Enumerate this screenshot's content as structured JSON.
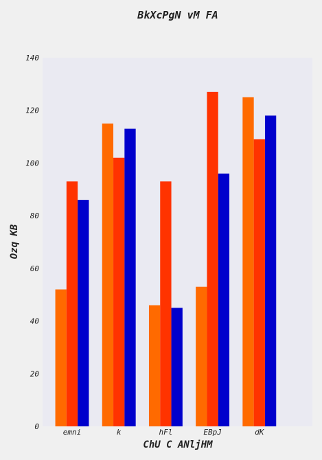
{
  "chart_data": {
    "type": "bar",
    "title": "BkXcPgN vM FA",
    "xlabel": "ChU C ANljHM",
    "ylabel": "Ozq KB",
    "categories": [
      "emni",
      "k",
      "hFl",
      "EBpJ",
      "dK"
    ],
    "series": [
      {
        "values": [
          52,
          115,
          46,
          53,
          125
        ],
        "color": "#ff6a00"
      },
      {
        "values": [
          93,
          102,
          93,
          127,
          109
        ],
        "color": "#ff3300"
      },
      {
        "values": [
          86,
          113,
          45,
          96,
          118
        ],
        "color": "#0000cc"
      }
    ],
    "ylim": [
      0,
      140
    ],
    "yticks": [
      0,
      20,
      40,
      60,
      80,
      100,
      120,
      140
    ],
    "grid": false,
    "legend": "none",
    "plot_background": "#eaeaf2",
    "page_background": "#f0f0f0"
  }
}
